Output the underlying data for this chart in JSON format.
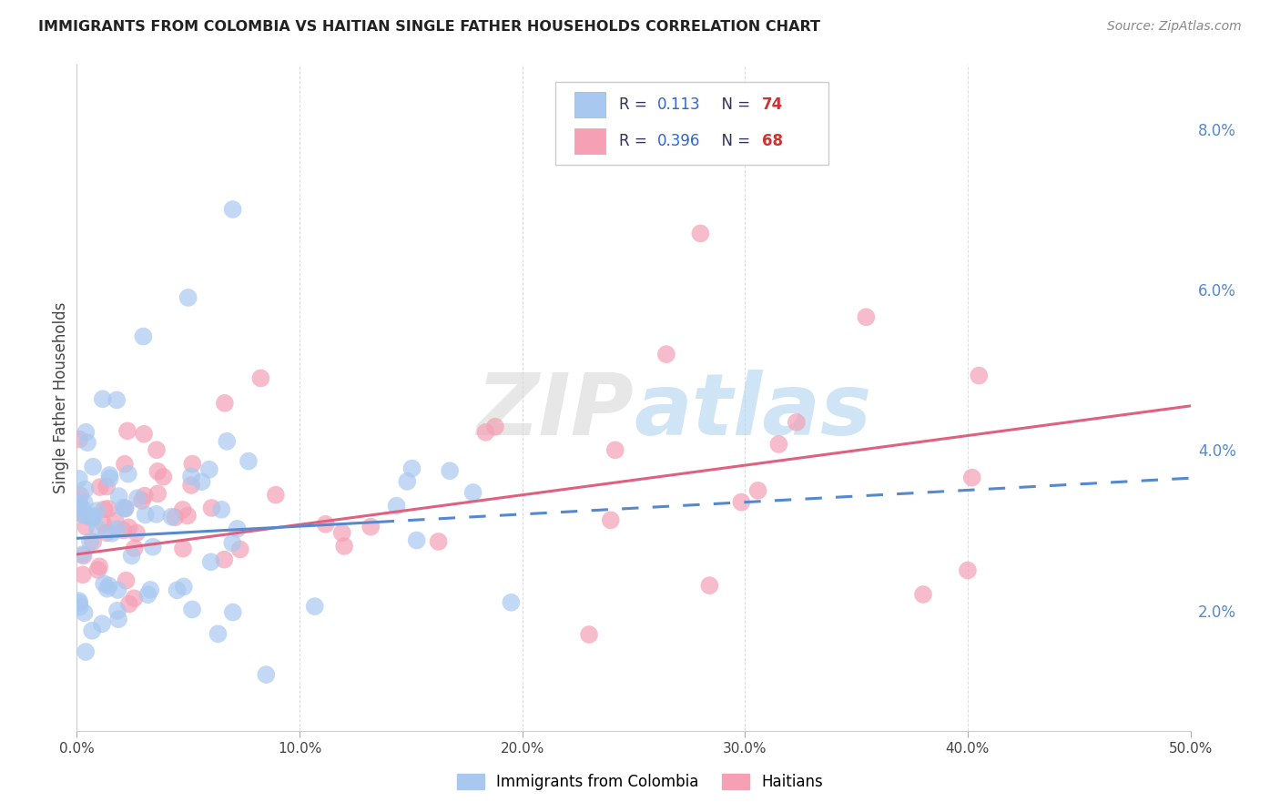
{
  "title": "IMMIGRANTS FROM COLOMBIA VS HAITIAN SINGLE FATHER HOUSEHOLDS CORRELATION CHART",
  "source": "Source: ZipAtlas.com",
  "ylabel": "Single Father Households",
  "colombia_color": "#a8c8f0",
  "haiti_color": "#f5a0b5",
  "colombia_line_color": "#5588cc",
  "haiti_line_color": "#e06080",
  "colombia_R": 0.113,
  "colombia_N": 74,
  "haiti_R": 0.396,
  "haiti_N": 68,
  "background_color": "#ffffff",
  "grid_color": "#dddddd",
  "legend_label_1": "Immigrants from Colombia",
  "legend_label_2": "Haitians",
  "ytick_color": "#5588cc",
  "title_color": "#222222",
  "source_color": "#888888"
}
